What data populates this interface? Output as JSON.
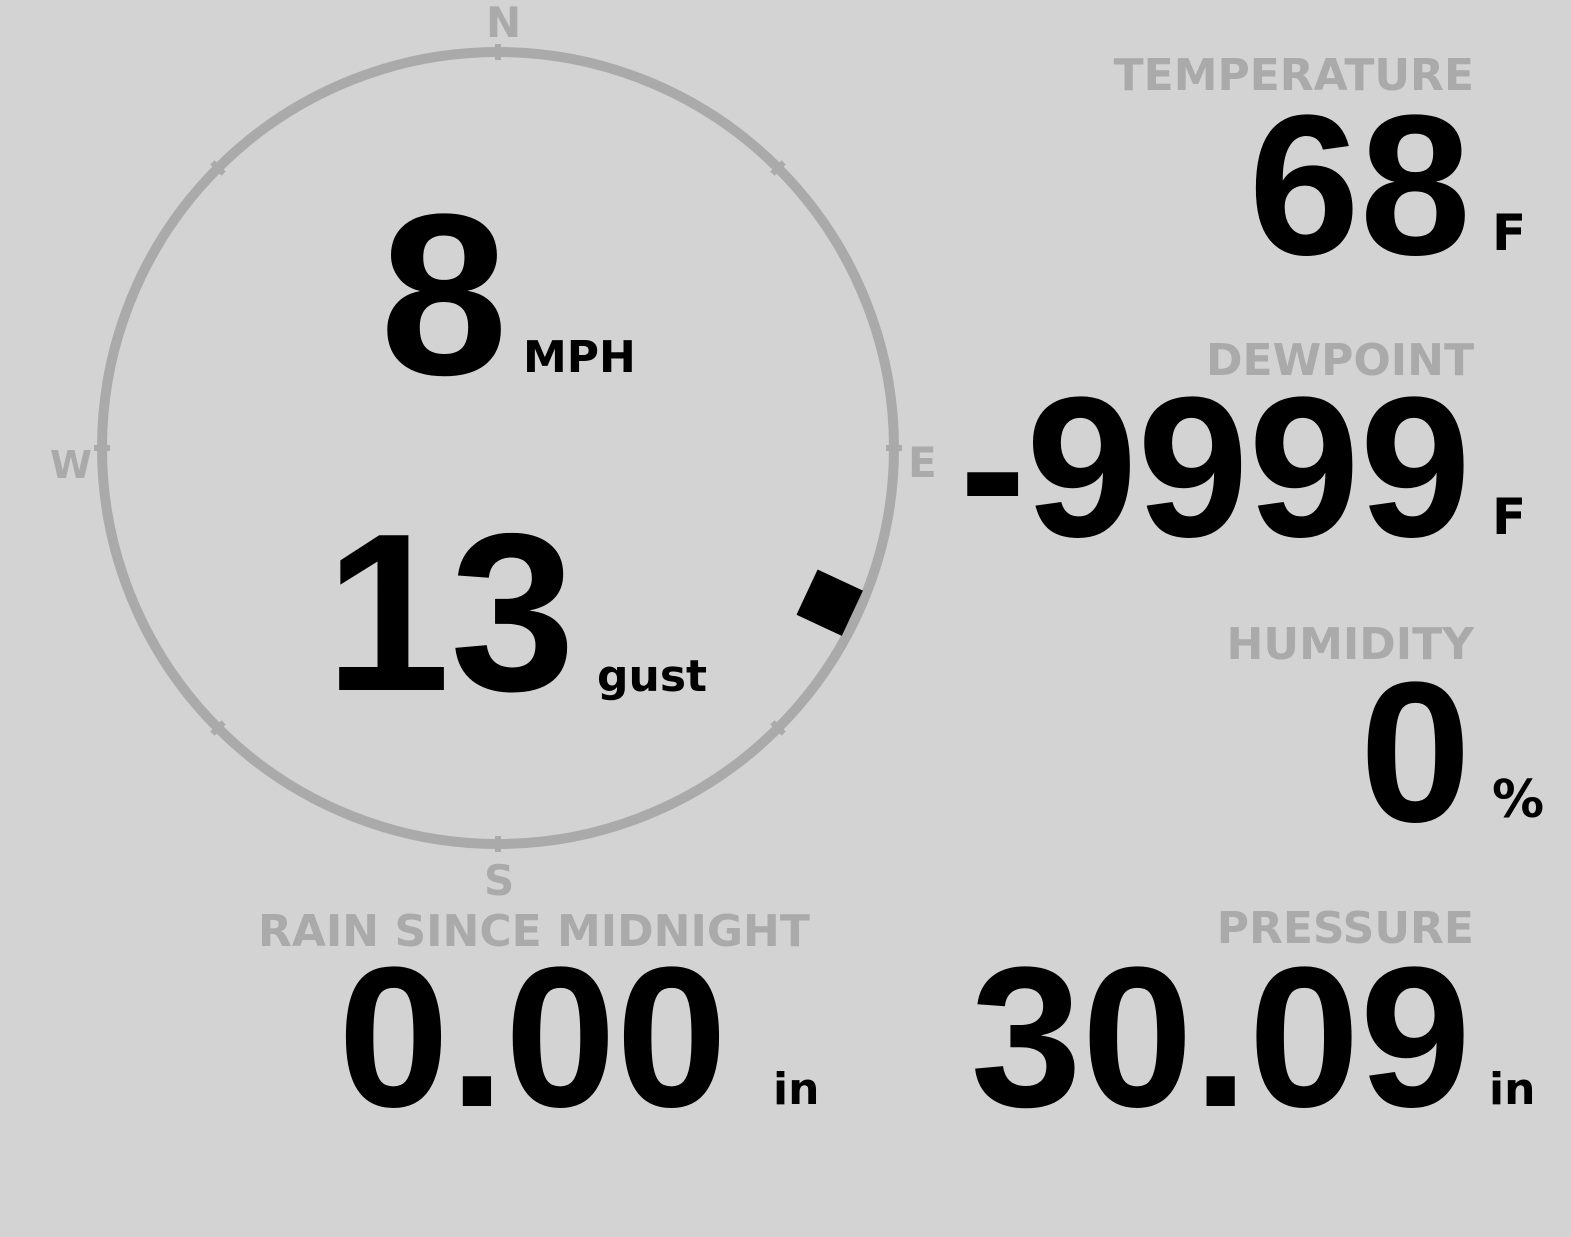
{
  "compass": {
    "n": "N",
    "s": "S",
    "e": "E",
    "w": "W",
    "wind_direction_deg": 115,
    "ring_color": "#aaaaaa",
    "needle_color": "#000000"
  },
  "wind": {
    "speed": "8",
    "speed_unit": "MPH",
    "gust": "13",
    "gust_unit": "gust"
  },
  "temperature": {
    "label": "TEMPERATURE",
    "value": "68",
    "unit": "F"
  },
  "dewpoint": {
    "label": "DEWPOINT",
    "value": "-9999",
    "unit": "F"
  },
  "humidity": {
    "label": "HUMIDITY",
    "value": "0",
    "unit": "%"
  },
  "rain": {
    "label": "RAIN SINCE MIDNIGHT",
    "value": "0.00",
    "unit": "in"
  },
  "pressure": {
    "label": "PRESSURE",
    "value": "30.09",
    "unit": "in"
  },
  "colors": {
    "background": "#d3d3d3",
    "label": "#aaaaaa",
    "value": "#000000"
  }
}
